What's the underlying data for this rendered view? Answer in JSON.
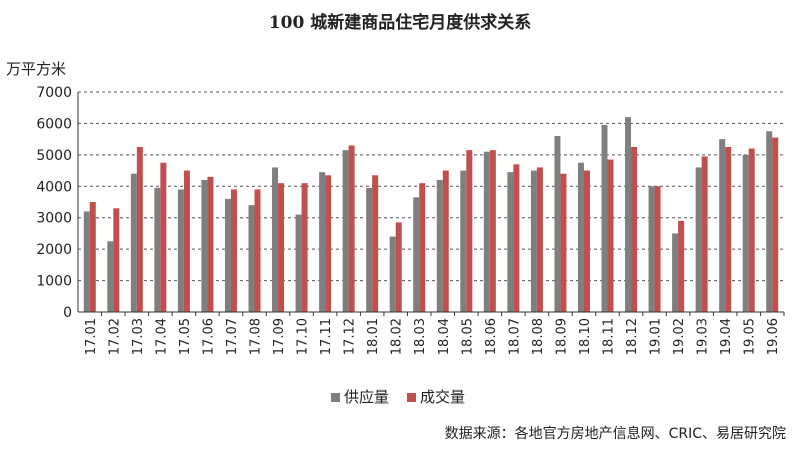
{
  "chart_data": {
    "type": "bar",
    "title": "100 城新建商品住宅月度供求关系",
    "ylabel": "万平方米",
    "ylim": [
      0,
      7000
    ],
    "yticks": [
      0,
      1000,
      2000,
      3000,
      4000,
      5000,
      6000,
      7000
    ],
    "grid": true,
    "legend_position": "bottom",
    "categories": [
      "17.01",
      "17.02",
      "17.03",
      "17.04",
      "17.05",
      "17.06",
      "17.07",
      "17.08",
      "17.09",
      "17.10",
      "17.11",
      "17.12",
      "18.01",
      "18.02",
      "18.03",
      "18.04",
      "18.05",
      "18.06",
      "18.07",
      "18.08",
      "18.09",
      "18.10",
      "18.11",
      "18.12",
      "19.01",
      "19.02",
      "19.03",
      "19.04",
      "19.05",
      "19.06"
    ],
    "series": [
      {
        "name": "供应量",
        "color": "#7f7f7f",
        "values": [
          3200,
          2250,
          4400,
          3950,
          3900,
          4200,
          3600,
          3400,
          4600,
          3100,
          4450,
          5150,
          3950,
          2400,
          3650,
          4200,
          4500,
          5100,
          4450,
          4500,
          5600,
          4750,
          5950,
          6200,
          4000,
          2500,
          4600,
          5500,
          5000,
          5750
        ]
      },
      {
        "name": "成交量",
        "color": "#c0504d",
        "values": [
          3500,
          3300,
          5250,
          4750,
          4500,
          4300,
          3900,
          3900,
          4100,
          4100,
          4350,
          5300,
          4350,
          2850,
          4100,
          4500,
          5150,
          5150,
          4700,
          4600,
          4400,
          4500,
          4850,
          5250,
          4000,
          2900,
          4950,
          5250,
          5200,
          5550
        ]
      }
    ],
    "source": "数据来源：各地官方房地产信息网、CRIC、易居研究院"
  }
}
